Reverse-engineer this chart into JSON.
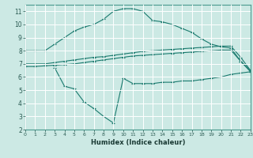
{
  "title": "",
  "xlabel": "Humidex (Indice chaleur)",
  "bg_color": "#cce9e4",
  "line_color": "#1a7a6e",
  "grid_color": "#ffffff",
  "x_values": [
    0,
    1,
    2,
    3,
    4,
    5,
    6,
    7,
    8,
    9,
    10,
    11,
    12,
    13,
    14,
    15,
    16,
    17,
    18,
    19,
    20,
    21,
    22,
    23
  ],
  "line1": [
    8.0,
    8.0,
    8.0,
    8.5,
    9.0,
    9.5,
    9.8,
    10.0,
    10.4,
    11.0,
    11.2,
    11.2,
    11.0,
    10.3,
    10.2,
    10.0,
    9.7,
    9.4,
    8.9,
    8.5,
    8.3,
    8.2,
    7.2,
    6.5
  ],
  "line2": [
    7.0,
    7.0,
    7.0,
    7.1,
    7.2,
    7.3,
    7.4,
    7.5,
    7.55,
    7.65,
    7.75,
    7.85,
    7.95,
    8.0,
    8.05,
    8.1,
    8.15,
    8.2,
    8.25,
    8.3,
    8.35,
    8.35,
    7.5,
    6.5
  ],
  "line3": [
    6.8,
    6.8,
    6.85,
    6.9,
    6.95,
    7.0,
    7.1,
    7.2,
    7.3,
    7.4,
    7.5,
    7.6,
    7.65,
    7.7,
    7.75,
    7.8,
    7.85,
    7.9,
    7.95,
    8.0,
    8.05,
    8.05,
    7.2,
    6.4
  ],
  "line4_x": [
    3,
    4,
    5,
    6,
    7,
    8,
    9,
    10,
    11,
    12,
    13,
    14,
    15,
    16,
    17,
    18,
    19,
    20,
    21,
    22,
    23
  ],
  "line4": [
    6.7,
    5.3,
    5.1,
    4.1,
    3.6,
    3.0,
    2.5,
    5.9,
    5.5,
    5.5,
    5.5,
    5.6,
    5.6,
    5.7,
    5.7,
    5.8,
    5.9,
    6.0,
    6.2,
    6.3,
    6.4
  ],
  "xlim": [
    0,
    23
  ],
  "ylim": [
    2,
    11.5
  ],
  "yticks": [
    2,
    3,
    4,
    5,
    6,
    7,
    8,
    9,
    10,
    11
  ],
  "xticks": [
    0,
    1,
    2,
    3,
    4,
    5,
    6,
    7,
    8,
    9,
    10,
    11,
    12,
    13,
    14,
    15,
    16,
    17,
    18,
    19,
    20,
    21,
    22,
    23
  ]
}
